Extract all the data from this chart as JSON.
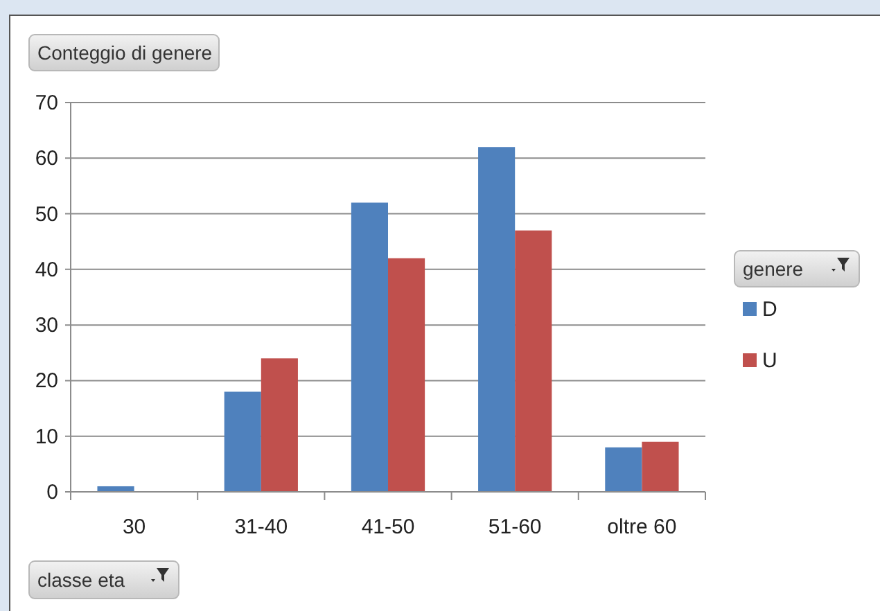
{
  "chart_data": {
    "type": "bar",
    "title": "Conteggio di genere",
    "xlabel": "classe eta",
    "legend_title": "genere",
    "categories": [
      "30",
      "31-40",
      "41-50",
      "51-60",
      "oltre 60"
    ],
    "series": [
      {
        "name": "D",
        "color": "#4f81bd",
        "values": [
          1,
          18,
          52,
          62,
          8
        ]
      },
      {
        "name": "U",
        "color": "#c0504d",
        "values": [
          null,
          24,
          42,
          47,
          9
        ]
      }
    ],
    "ylim": [
      0,
      70
    ],
    "yticks": [
      0,
      10,
      20,
      30,
      40,
      50,
      60,
      70
    ],
    "grid": "y",
    "legend": "right"
  }
}
